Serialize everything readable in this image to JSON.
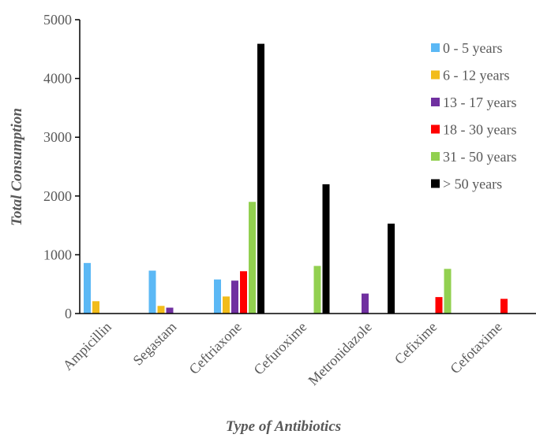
{
  "chart_data": {
    "type": "bar",
    "title": "",
    "xlabel": "Type of Antibiotics",
    "ylabel": "Total Consumption",
    "ylim": [
      0,
      5000
    ],
    "yticks": [
      0,
      1000,
      2000,
      3000,
      4000,
      5000
    ],
    "grid": false,
    "legend_position": "top-right",
    "categories": [
      "Ampicillin",
      "Segastam",
      "Ceftriaxone",
      "Cefuroxime",
      "Metronidazole",
      "Cefixime",
      "Cefotaxime"
    ],
    "series": [
      {
        "name": "0 - 5 years",
        "color": "#5BB8F5",
        "values": [
          860,
          730,
          580,
          0,
          0,
          0,
          0
        ]
      },
      {
        "name": "6 - 12 years",
        "color": "#F2BC1A",
        "values": [
          210,
          130,
          290,
          0,
          0,
          0,
          0
        ]
      },
      {
        "name": "13 - 17 years",
        "color": "#7030A0",
        "values": [
          0,
          100,
          560,
          0,
          340,
          0,
          0
        ]
      },
      {
        "name": "18 - 30 years",
        "color": "#FF0000",
        "values": [
          0,
          0,
          720,
          0,
          0,
          280,
          250
        ]
      },
      {
        "name": "31 - 50 years",
        "color": "#92D050",
        "values": [
          0,
          0,
          1900,
          810,
          0,
          760,
          0
        ]
      },
      {
        "name": "> 50 years",
        "color": "#000000",
        "values": [
          0,
          0,
          4590,
          2200,
          1530,
          0,
          0
        ]
      }
    ]
  }
}
